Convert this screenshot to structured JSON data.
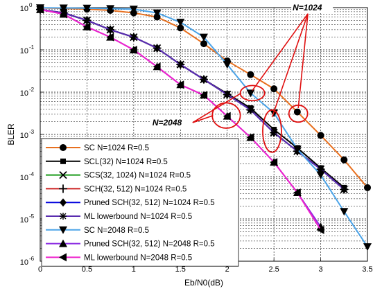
{
  "chart_data": {
    "type": "line",
    "title": "",
    "xlabel": "Eb/N0(dB)",
    "ylabel": "BLER",
    "xlim": [
      0,
      3.5
    ],
    "ylim": [
      1e-06,
      1
    ],
    "yscale": "log",
    "grid": true,
    "legend_position": "bottom-left",
    "x_ticks": [
      "0",
      "0.5",
      "1",
      "1.5",
      "2",
      "2.5",
      "3",
      "3.5"
    ],
    "y_ticks": [
      {
        "base": "10",
        "exp": "0"
      },
      {
        "base": "10",
        "exp": "-1"
      },
      {
        "base": "10",
        "exp": "-2"
      },
      {
        "base": "10",
        "exp": "-3"
      },
      {
        "base": "10",
        "exp": "-4"
      },
      {
        "base": "10",
        "exp": "-5"
      },
      {
        "base": "10",
        "exp": "-6"
      }
    ],
    "annotations": [
      {
        "text": "N=1024",
        "at": [
          2.7,
          0.9
        ],
        "color": "#000000"
      },
      {
        "text": "N=2048",
        "at": [
          1.2,
          0.0017
        ],
        "color": "#000000"
      }
    ],
    "highlight_ellipses": [
      {
        "center": [
          2.27,
          0.0095
        ],
        "rx_data": 0.13,
        "ry_decades": 0.18
      },
      {
        "center": [
          2.76,
          0.0031
        ],
        "rx_data": 0.1,
        "ry_decades": 0.2
      },
      {
        "center": [
          1.99,
          0.0028
        ],
        "rx_data": 0.15,
        "ry_decades": 0.3
      },
      {
        "center": [
          2.48,
          0.0012
        ],
        "rx_data": 0.1,
        "ry_decades": 0.5
      }
    ],
    "series": [
      {
        "name": "SC N=1024 R=0.5",
        "color": "#e8701f",
        "marker": "circle",
        "x": [
          0,
          0.25,
          0.5,
          0.75,
          1,
          1.25,
          1.5,
          1.75,
          2,
          2.25,
          2.5,
          2.75,
          3,
          3.25,
          3.5
        ],
        "y": [
          0.98,
          0.96,
          0.92,
          0.86,
          0.75,
          0.6,
          0.33,
          0.14,
          0.055,
          0.026,
          0.012,
          0.0034,
          0.00095,
          0.00025,
          5.5e-05
        ]
      },
      {
        "name": "SCL(32) N=1024 R=0.5",
        "color": "#000000",
        "marker": "square",
        "x": [
          0,
          0.25,
          0.5,
          0.75,
          1,
          1.25,
          1.5,
          1.75,
          2,
          2.25,
          2.5,
          2.75,
          3,
          3.25
        ],
        "y": [
          0.9,
          0.75,
          0.5,
          0.3,
          0.2,
          0.11,
          0.045,
          0.02,
          0.0092,
          0.0042,
          0.0013,
          0.00048,
          0.00016,
          5.5e-05
        ]
      },
      {
        "name": "SCS(32, 1024) N=1024 R=0.5",
        "color": "#1a9a1a",
        "marker": "x",
        "x": [
          0,
          0.25,
          0.5,
          0.75,
          1,
          1.25,
          1.5,
          1.75,
          2,
          2.25,
          2.5,
          2.75,
          3,
          3.25
        ],
        "y": [
          0.9,
          0.75,
          0.5,
          0.3,
          0.2,
          0.11,
          0.045,
          0.02,
          0.0088,
          0.0038,
          0.0011,
          0.0004,
          0.00015,
          5e-05
        ]
      },
      {
        "name": "SCH(32, 512)  N=1024 R=0.5",
        "color": "#cc2222",
        "marker": "plus",
        "x": [
          0,
          0.25,
          0.5,
          0.75,
          1,
          1.25,
          1.5,
          1.75,
          2,
          2.25,
          2.5,
          2.75,
          3,
          3.25
        ],
        "y": [
          0.9,
          0.75,
          0.5,
          0.3,
          0.2,
          0.11,
          0.045,
          0.02,
          0.0088,
          0.0038,
          0.0011,
          0.0004,
          0.00015,
          5e-05
        ]
      },
      {
        "name": "Pruned SCH(32, 512)  N=1024 R=0.5",
        "color": "#0000dd",
        "marker": "diamond",
        "x": [
          0,
          0.25,
          0.5,
          0.75,
          1,
          1.25,
          1.5,
          1.75,
          2,
          2.25,
          2.5,
          2.75,
          3,
          3.25
        ],
        "y": [
          0.9,
          0.75,
          0.5,
          0.3,
          0.2,
          0.11,
          0.045,
          0.02,
          0.0088,
          0.0038,
          0.0011,
          0.0004,
          0.00015,
          5e-05
        ]
      },
      {
        "name": "ML lowerbound N=1024 R=0.5",
        "color": "#5a2db0",
        "marker": "asterisk",
        "x": [
          0,
          0.25,
          0.5,
          0.75,
          1,
          1.25,
          1.5,
          1.75,
          2,
          2.25,
          2.5,
          2.75,
          3,
          3.25
        ],
        "y": [
          0.9,
          0.75,
          0.5,
          0.3,
          0.2,
          0.11,
          0.045,
          0.02,
          0.0088,
          0.0038,
          0.0011,
          0.0004,
          0.00015,
          5e-05
        ]
      },
      {
        "name": "SC N=2048 R=0.5",
        "color": "#4aa3e8",
        "marker": "triangle-down",
        "x": [
          0,
          0.25,
          0.5,
          0.75,
          1,
          1.25,
          1.5,
          1.75,
          2,
          2.25,
          2.5,
          2.75,
          3,
          3.25,
          3.5
        ],
        "y": [
          0.99,
          0.98,
          0.97,
          0.95,
          0.92,
          0.75,
          0.45,
          0.2,
          0.045,
          0.0095,
          0.0032,
          0.00045,
          0.00011,
          1.5e-05,
          2.2e-06
        ]
      },
      {
        "name": "Pruned SCH(32, 512)  N=2048 R=0.5",
        "color": "#8a2be2",
        "marker": "triangle-up",
        "x": [
          0,
          0.25,
          0.5,
          0.75,
          1,
          1.25,
          1.5,
          1.75,
          2,
          2.25,
          2.5,
          2.75,
          3
        ],
        "y": [
          0.9,
          0.7,
          0.35,
          0.2,
          0.1,
          0.04,
          0.015,
          0.0085,
          0.0027,
          0.00085,
          0.00022,
          4.2e-05,
          6.5e-06
        ]
      },
      {
        "name": "ML lowerbound N=2048 R=0.5",
        "color": "#ee22cc",
        "marker": "triangle-left",
        "x": [
          0,
          0.25,
          0.5,
          0.75,
          1,
          1.25,
          1.5,
          1.75,
          2,
          2.25,
          2.5,
          2.75,
          3
        ],
        "y": [
          0.9,
          0.7,
          0.35,
          0.2,
          0.1,
          0.04,
          0.015,
          0.0085,
          0.0027,
          0.00085,
          0.00022,
          4.2e-05,
          5.5e-06
        ]
      }
    ]
  }
}
